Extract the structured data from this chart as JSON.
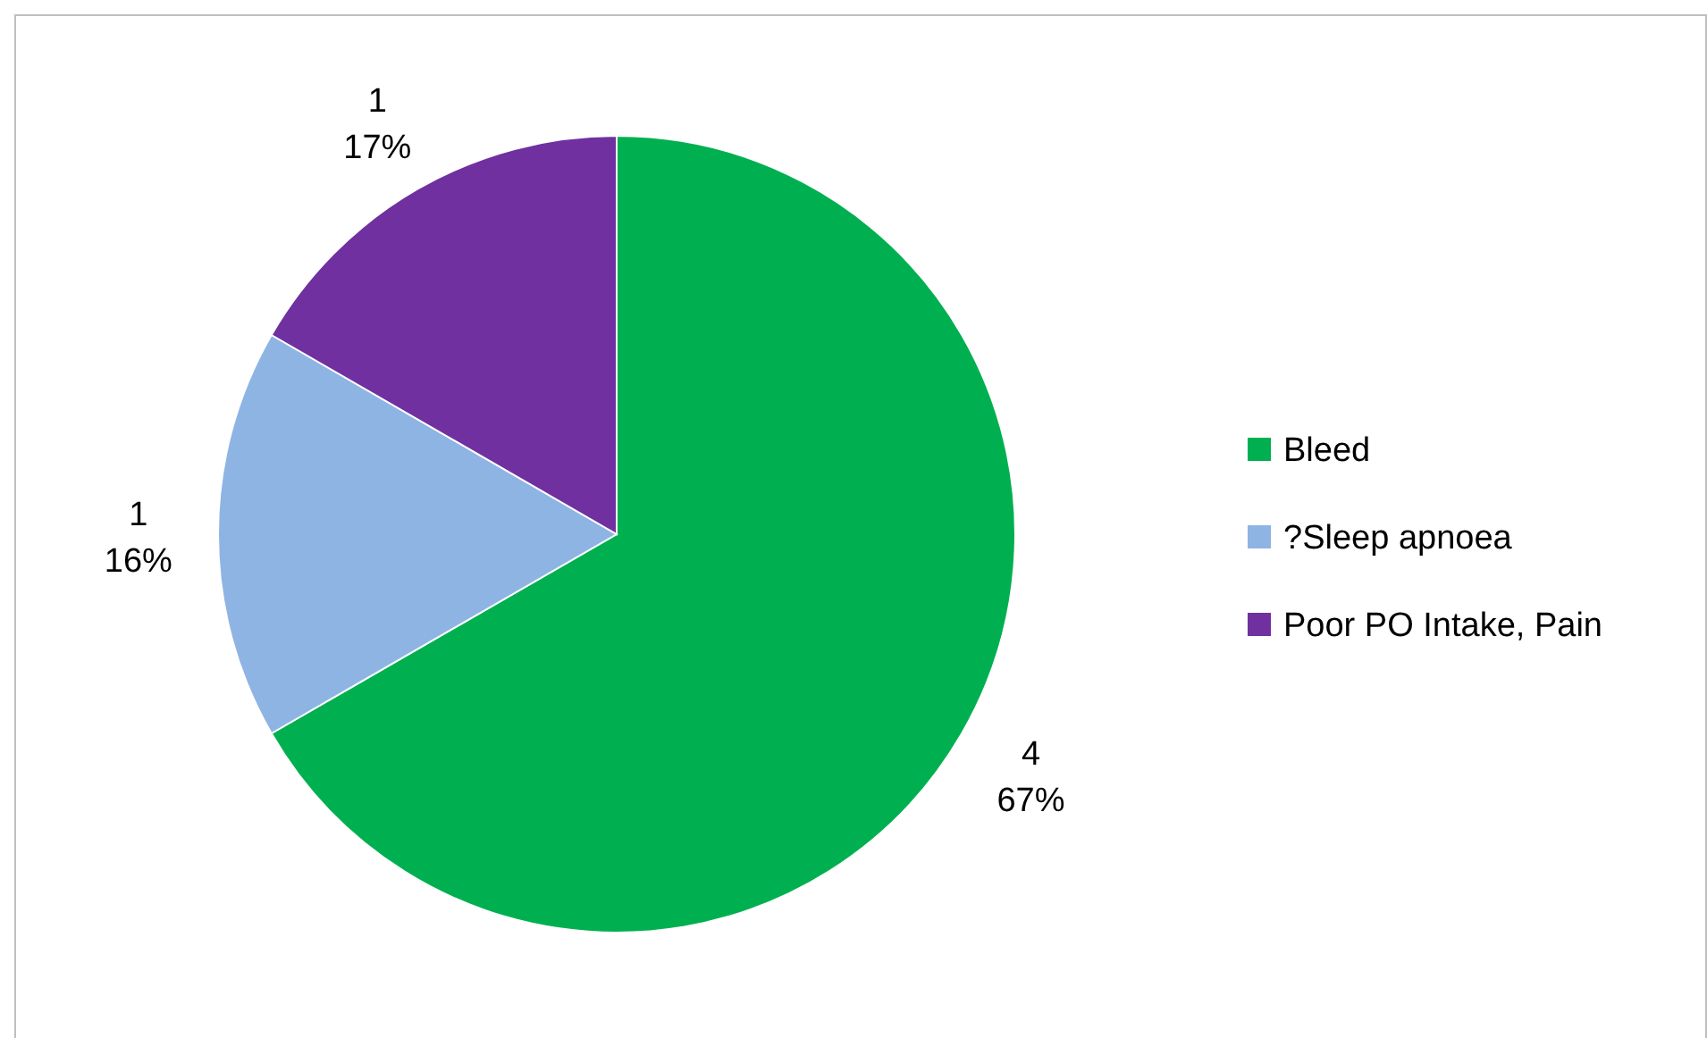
{
  "chart_data": {
    "type": "pie",
    "categories": [
      "Bleed",
      "?Sleep apnoea",
      "Poor PO Intake, Pain"
    ],
    "values": [
      4,
      1,
      1
    ],
    "colors": [
      "#00b050",
      "#8eb4e3",
      "#7030a0"
    ],
    "value_labels": [
      "4\n67%",
      "1\n16%",
      "1\n17%"
    ],
    "legend": "right"
  }
}
